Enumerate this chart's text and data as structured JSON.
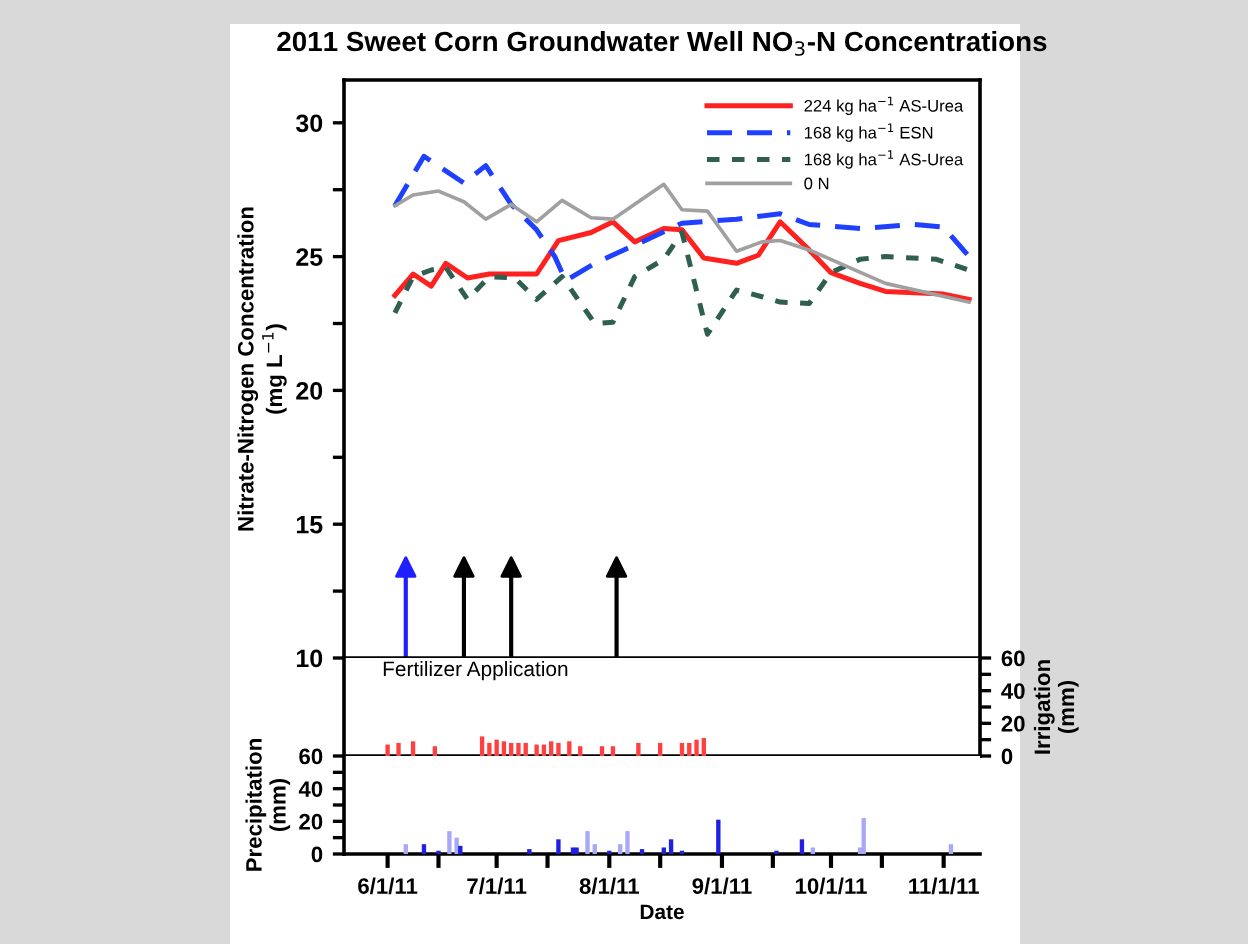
{
  "chart_data": [
    {
      "type": "line",
      "title": "2011 Sweet Corn Groundwater Well NO$_{3}$-N Concentrations",
      "ylabel": "Nitrate-Nitrogen Concentration\n(mg L$^{−1}$)",
      "xlim": [
        "2011-05-20",
        "2011-11-11"
      ],
      "ylim": [
        10,
        31.6
      ],
      "yticks": [
        10,
        {
          "value": 12.5,
          "label": null
        },
        15,
        {
          "value": 17.5,
          "label": null
        },
        20,
        {
          "value": 22.5,
          "label": null
        },
        25,
        {
          "value": 27.5,
          "label": null
        },
        30
      ],
      "tick_labels": "y",
      "legend": "top right",
      "grid": false,
      "series": [
        {
          "name": "224 kg ha$^{−1}$ AS-Urea",
          "color": "#ff2020",
          "line_style": "solid",
          "x": [
            "2011-06-03",
            "2011-06-08",
            "2011-06-13",
            "2011-06-17",
            "2011-06-23",
            "2011-06-29",
            "2011-07-12",
            "2011-07-18",
            "2011-07-27",
            "2011-08-02",
            "2011-08-08",
            "2011-08-16",
            "2011-08-21",
            "2011-08-27",
            "2011-09-05",
            "2011-09-11",
            "2011-09-17",
            "2011-09-25",
            "2011-10-01",
            "2011-10-09",
            "2011-10-16",
            "2011-11-01",
            "2011-11-08"
          ],
          "values": [
            23.55,
            24.35,
            23.9,
            24.75,
            24.2,
            24.35,
            24.35,
            25.6,
            25.9,
            26.3,
            25.55,
            26.05,
            26.0,
            24.95,
            24.75,
            25.05,
            26.3,
            25.25,
            24.4,
            24.0,
            23.7,
            23.6,
            23.4
          ]
        },
        {
          "name": "168 kg ha$^{−1}$ ESN",
          "color": "#2040ff",
          "line_style": "dashed",
          "x": [
            "2011-06-03",
            "2011-06-11",
            "2011-06-22",
            "2011-06-28",
            "2011-07-05",
            "2011-07-12",
            "2011-07-17",
            "2011-07-20",
            "2011-07-28",
            "2011-08-05",
            "2011-08-10",
            "2011-08-21",
            "2011-09-05",
            "2011-09-17",
            "2011-09-25",
            "2011-10-09",
            "2011-10-24",
            "2011-11-01",
            "2011-11-08"
          ],
          "values": [
            26.9,
            28.75,
            27.75,
            28.4,
            26.95,
            26.0,
            25.0,
            24.1,
            24.75,
            25.25,
            25.55,
            26.25,
            26.4,
            26.6,
            26.2,
            26.05,
            26.2,
            26.1,
            25.0
          ]
        },
        {
          "name": "168 kg ha$^{−1}$ AS-Urea",
          "color": "#2f5f50",
          "line_style": "dotted",
          "x": [
            "2011-06-03",
            "2011-06-08",
            "2011-06-13",
            "2011-06-17",
            "2011-06-23",
            "2011-06-29",
            "2011-07-06",
            "2011-07-12",
            "2011-07-19",
            "2011-07-28",
            "2011-08-02",
            "2011-08-08",
            "2011-08-16",
            "2011-08-21",
            "2011-08-28",
            "2011-09-05",
            "2011-09-12",
            "2011-09-17",
            "2011-09-25",
            "2011-10-01",
            "2011-10-09",
            "2011-10-16",
            "2011-10-30",
            "2011-11-08"
          ],
          "values": [
            22.9,
            24.25,
            24.5,
            24.6,
            23.4,
            24.25,
            24.2,
            23.4,
            24.25,
            22.5,
            22.55,
            24.25,
            24.9,
            25.9,
            22.1,
            23.75,
            23.5,
            23.3,
            23.25,
            24.4,
            24.9,
            25.0,
            24.9,
            24.5
          ]
        },
        {
          "name": "0 N",
          "color": "#a0a0a0",
          "line_style": "solid",
          "x": [
            "2011-06-03",
            "2011-06-08",
            "2011-06-15",
            "2011-06-22",
            "2011-06-28",
            "2011-07-05",
            "2011-07-12",
            "2011-07-19",
            "2011-07-27",
            "2011-08-02",
            "2011-08-16",
            "2011-08-21",
            "2011-08-28",
            "2011-09-05",
            "2011-09-12",
            "2011-09-17",
            "2011-09-25",
            "2011-10-16",
            "2011-11-08"
          ],
          "values": [
            26.9,
            27.3,
            27.45,
            27.05,
            26.4,
            26.95,
            26.3,
            27.1,
            26.45,
            26.4,
            27.7,
            26.75,
            26.7,
            25.2,
            25.55,
            25.6,
            25.25,
            24.0,
            23.3
          ]
        },
        {
          "type": "lollipop",
          "marker": "triangle",
          "colors": [
            "#2020ff",
            "#000000",
            "#000000",
            "#000000"
          ],
          "x": [
            "2011-06-06",
            "2011-06-22",
            "2011-07-05",
            "2011-08-03"
          ],
          "values": [
            13.4,
            13.4,
            13.4,
            13.4
          ]
        }
      ]
    },
    {
      "type": "bar",
      "ylabel": "Irrigation\n(mm)",
      "xlim": [
        "2011-05-20",
        "2011-11-11"
      ],
      "ylim": [
        0,
        60
      ],
      "yticks": [
        0,
        {
          "value": 10,
          "label": null
        },
        20,
        {
          "value": 30,
          "label": null
        },
        40,
        {
          "value": 50,
          "label": null
        },
        60
      ],
      "tick_labels": "y",
      "annotations": [
        "Fertilizer Application"
      ],
      "series": [
        {
          "color": "#ff4040",
          "x": [
            "2011-06-01",
            "2011-06-04",
            "2011-06-08",
            "2011-06-14",
            "2011-06-27",
            "2011-06-29",
            "2011-07-01",
            "2011-07-03",
            "2011-07-05",
            "2011-07-07",
            "2011-07-09",
            "2011-07-12",
            "2011-07-14",
            "2011-07-16",
            "2011-07-18",
            "2011-07-21",
            "2011-07-24",
            "2011-07-30",
            "2011-08-02",
            "2011-08-09",
            "2011-08-15",
            "2011-08-21",
            "2011-08-23",
            "2011-08-25",
            "2011-08-27"
          ],
          "values": [
            7,
            8,
            9,
            6,
            12,
            8,
            10,
            9,
            8,
            8,
            8,
            7,
            7,
            9,
            8,
            9,
            6,
            6,
            6,
            8,
            8,
            8,
            8,
            10,
            11
          ]
        }
      ]
    },
    {
      "type": "bar",
      "ylabel": "Precipitation\n(mm)",
      "xlabel": "Date",
      "xlim": [
        "2011-05-20",
        "2011-11-11"
      ],
      "xticks": [
        {
          "value": "2011-06-01",
          "label": "6/1/11"
        },
        {
          "value": "2011-06-15",
          "label": null
        },
        {
          "value": "2011-07-01",
          "label": "7/1/11"
        },
        {
          "value": "2011-07-15",
          "label": null
        },
        {
          "value": "2011-08-01",
          "label": "8/1/11"
        },
        {
          "value": "2011-08-15",
          "label": null
        },
        {
          "value": "2011-09-01",
          "label": "9/1/11"
        },
        {
          "value": "2011-09-15",
          "label": null
        },
        {
          "value": "2011-10-01",
          "label": "10/1/11"
        },
        {
          "value": "2011-10-15",
          "label": null
        },
        {
          "value": "2011-11-01",
          "label": "11/1/11"
        }
      ],
      "ylim": [
        0,
        60
      ],
      "yticks": [
        0,
        {
          "value": 10,
          "label": null
        },
        20,
        {
          "value": 30,
          "label": null
        },
        40,
        {
          "value": 50,
          "label": null
        },
        60
      ],
      "series": [
        {
          "x": [
            "2011-06-06",
            "2011-06-11",
            "2011-06-15",
            "2011-06-18",
            "2011-06-20",
            "2011-06-21",
            "2011-07-10",
            "2011-07-18",
            "2011-07-22",
            "2011-07-23",
            "2011-07-26",
            "2011-07-28",
            "2011-08-01",
            "2011-08-04",
            "2011-08-06",
            "2011-08-10",
            "2011-08-16",
            "2011-08-18",
            "2011-08-21",
            "2011-08-31",
            "2011-09-16",
            "2011-09-23",
            "2011-09-26",
            "2011-10-09",
            "2011-10-10",
            "2011-11-03"
          ],
          "values": [
            6,
            6,
            2,
            14,
            10,
            5,
            3,
            9,
            4,
            4,
            14,
            6,
            2,
            6,
            14,
            3,
            4,
            9,
            2,
            21,
            2,
            9,
            4,
            4,
            22,
            6
          ],
          "colors": [
            "#a8a8f8",
            "#2020e0",
            "#2020e0",
            "#a8a8f8",
            "#a8a8f8",
            "#2020e0",
            "#2020e0",
            "#2020e0",
            "#2020e0",
            "#2020e0",
            "#a8a8f8",
            "#a8a8f8",
            "#2020e0",
            "#a8a8f8",
            "#a8a8f8",
            "#2020e0",
            "#2020e0",
            "#2020e0",
            "#2020e0",
            "#2020e0",
            "#2020e0",
            "#2020e0",
            "#a8a8f8",
            "#a8a8f8",
            "#a8a8f8",
            "#a8a8f8"
          ]
        }
      ]
    }
  ]
}
